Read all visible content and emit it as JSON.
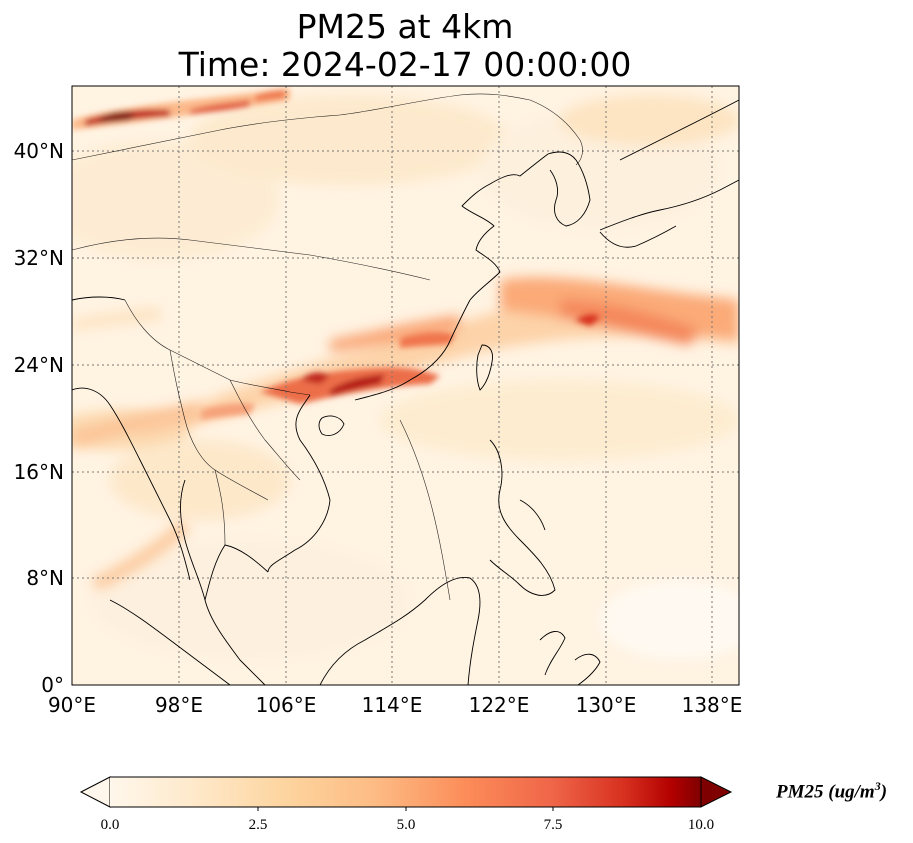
{
  "title": {
    "line1": "PM25 at 4km",
    "line2": "Time: 2024-02-17 00:00:00"
  },
  "map": {
    "lon_range": [
      90,
      140
    ],
    "lat_range": [
      0,
      45
    ],
    "gridlines": true,
    "x_ticks": [
      "90°E",
      "98°E",
      "106°E",
      "114°E",
      "122°E",
      "130°E",
      "138°E"
    ],
    "y_ticks": [
      "0°",
      "8°N",
      "16°N",
      "24°N",
      "32°N",
      "40°N"
    ],
    "colormap": "OrRd",
    "colors": {
      "low": "#fff7ec",
      "mid": "#fc8d59",
      "high": "#7f0000"
    }
  },
  "colorbar": {
    "label": "PM25 (ug/m",
    "label_sup": "3",
    "label_close": ")",
    "ticks": [
      "0.0",
      "2.5",
      "5.0",
      "7.5",
      "10.0"
    ],
    "range": [
      0,
      10
    ],
    "extend": "both"
  }
}
